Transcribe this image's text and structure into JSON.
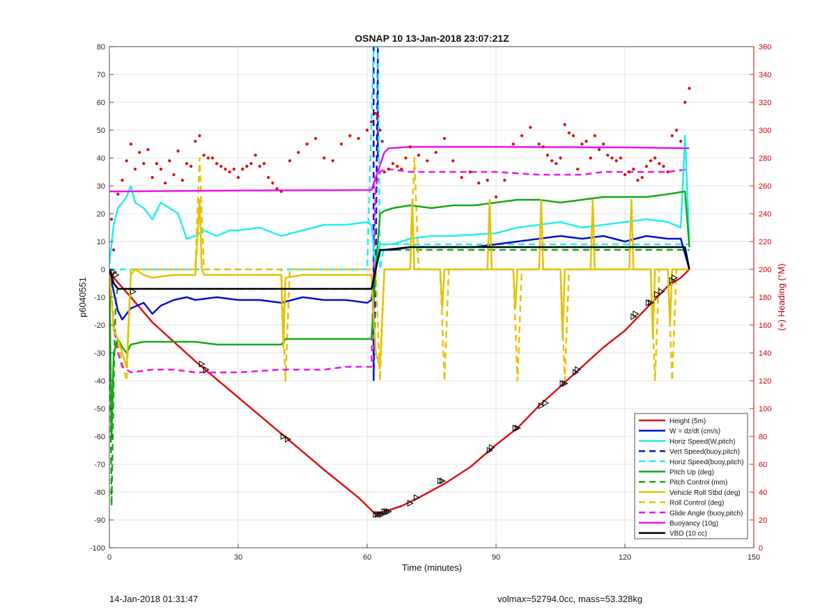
{
  "chart_data": {
    "type": "line",
    "title": "OSNAP 10 13-Jan-2018 23:07:21Z",
    "xlabel": "Time (minutes)",
    "ylabel_left": "p6040551",
    "ylabel_right": "(+) Heading (°M)",
    "xlim": [
      0,
      150
    ],
    "ylim_left": [
      -100,
      80
    ],
    "ylim_right": [
      0,
      360
    ],
    "xticks": [
      0,
      30,
      60,
      90,
      120,
      150
    ],
    "yticks_left": [
      -100,
      -90,
      -80,
      -70,
      -60,
      -50,
      -40,
      -30,
      -20,
      -10,
      0,
      10,
      20,
      30,
      40,
      50,
      60,
      70,
      80
    ],
    "yticks_right": [
      0,
      20,
      40,
      60,
      80,
      100,
      120,
      140,
      160,
      180,
      200,
      220,
      240,
      260,
      280,
      300,
      320,
      340,
      360
    ],
    "grid": true,
    "legend_position": "bottom-right",
    "colors": {
      "red": "#dd1111",
      "blue": "#0011cc",
      "cyan": "#22eeee",
      "green": "#11aa11",
      "yellow": "#e6c200",
      "magenta": "#ee11ee",
      "black": "#000000",
      "right_axis": "#cc0000"
    },
    "series": [
      {
        "name": "Height (5m)",
        "color": "#dd1111",
        "style": "solid",
        "x": [
          0,
          1,
          5,
          10,
          20,
          30,
          40,
          50,
          58,
          62,
          64,
          68,
          72,
          78,
          84,
          90,
          95,
          100,
          105,
          110,
          115,
          120,
          125,
          130,
          133,
          135
        ],
        "y": [
          0,
          -3,
          -10,
          -19,
          -33,
          -46,
          -59,
          -72,
          -82,
          -88,
          -87,
          -85,
          -82,
          -77,
          -71,
          -63,
          -57,
          -49,
          -42,
          -35,
          -28,
          -22,
          -14,
          -6,
          -3,
          0
        ]
      },
      {
        "name": "W = dz/dt (cm/s)",
        "color": "#0011cc",
        "style": "solid",
        "x": [
          0,
          1,
          2,
          3,
          5,
          8,
          10,
          12,
          15,
          18,
          20,
          25,
          30,
          35,
          40,
          45,
          50,
          55,
          60,
          61,
          62,
          63,
          64,
          66,
          70,
          75,
          80,
          85,
          90,
          95,
          100,
          105,
          110,
          115,
          120,
          125,
          130,
          133,
          135
        ],
        "y": [
          -1,
          -8,
          -15,
          -18,
          -14,
          -12,
          -16,
          -13,
          -11,
          -10,
          -11,
          -10,
          -11,
          -11,
          -12,
          -10,
          -11,
          -11,
          -12,
          -11,
          0,
          7,
          7,
          7,
          8,
          8,
          8,
          8,
          9,
          10,
          11,
          12,
          11,
          12,
          10,
          12,
          11,
          11,
          0
        ]
      },
      {
        "name": "Horiz Speed(W,pitch)",
        "color": "#22eeee",
        "style": "solid",
        "x": [
          0,
          1,
          2,
          3,
          4,
          5,
          6,
          8,
          10,
          12,
          14,
          16,
          18,
          20,
          22,
          25,
          28,
          30,
          35,
          40,
          45,
          50,
          55,
          60,
          61,
          62,
          63,
          64,
          66,
          70,
          75,
          80,
          90,
          95,
          100,
          105,
          110,
          115,
          120,
          125,
          130,
          133,
          134,
          135
        ],
        "y": [
          2,
          16,
          22,
          24,
          26,
          30,
          24,
          22,
          18,
          24,
          22,
          20,
          11,
          12,
          14,
          12,
          14,
          14,
          15,
          12,
          14,
          16,
          16,
          17,
          16,
          0,
          9,
          9,
          9,
          11,
          12,
          12,
          13,
          15,
          16,
          17,
          15,
          16,
          17,
          18,
          17,
          15,
          48,
          10
        ]
      },
      {
        "name": "Vert Speed(buoy,pitch)",
        "color": "#0011cc",
        "style": "dashed",
        "x": [
          61.5,
          61.5,
          62,
          62.5,
          62.5
        ],
        "y": [
          80,
          -40,
          0,
          80,
          40
        ]
      },
      {
        "name": "Horiz Speed(buoy,pitch)",
        "color": "#22eeee",
        "style": "dashed",
        "x": [
          0,
          60,
          61.5,
          62.5,
          63,
          64,
          130,
          135
        ],
        "y": [
          0,
          0,
          80,
          80,
          0,
          9,
          9,
          9
        ]
      },
      {
        "name": "Pitch Up (deg)",
        "color": "#11aa11",
        "style": "solid",
        "x": [
          0,
          0.5,
          1,
          2,
          3,
          4,
          5,
          8,
          10,
          15,
          20,
          25,
          30,
          35,
          40,
          41,
          45,
          50,
          55,
          61,
          62,
          63,
          64,
          66,
          70,
          75,
          80,
          85,
          90,
          95,
          100,
          105,
          110,
          115,
          120,
          125,
          130,
          134,
          135
        ],
        "y": [
          0,
          -60,
          -30,
          -25,
          -28,
          -30,
          -27,
          -26,
          -26,
          -26,
          -26,
          -27,
          -27,
          -27,
          -27,
          -25,
          -25,
          -25,
          -25,
          -25,
          0,
          20,
          21,
          22,
          23,
          22,
          23,
          23,
          24,
          25,
          25,
          24,
          25,
          26,
          26,
          26,
          27,
          28,
          8
        ]
      },
      {
        "name": "Pitch Control (mm)",
        "color": "#11aa11",
        "style": "dashed",
        "x": [
          0,
          0.5,
          1,
          1.5,
          2,
          3,
          5,
          10,
          30,
          60,
          61,
          62,
          63,
          64,
          70,
          90,
          120,
          135
        ],
        "y": [
          0,
          -85,
          -40,
          -10,
          -7,
          -7,
          -7,
          -7,
          -7,
          -7,
          -7,
          0,
          7,
          7,
          7,
          7,
          7,
          7
        ]
      },
      {
        "name": "Vehicle Roll Stbd (deg)",
        "color": "#e6c200",
        "style": "solid",
        "x": [
          0,
          1,
          2,
          3,
          4,
          5,
          6,
          8,
          10,
          15,
          20,
          21,
          21.5,
          22,
          25,
          30,
          35,
          40,
          40.5,
          41,
          45,
          55,
          61,
          62,
          63,
          64,
          65,
          66,
          70,
          70.5,
          71,
          77,
          77.5,
          78,
          88,
          88.5,
          89,
          94,
          94.5,
          95,
          100,
          100.5,
          101,
          105,
          105.5,
          106,
          112,
          112.5,
          113,
          121,
          121.5,
          122,
          126,
          126.5,
          127,
          130,
          130.5,
          131,
          133,
          135
        ],
        "y": [
          0,
          -22,
          -25,
          -30,
          -35,
          -2,
          0,
          -2,
          -3,
          -2,
          -2,
          25,
          0,
          -2,
          -2,
          -2,
          -2,
          -2,
          -28,
          -3,
          -2,
          -2,
          -2,
          -30,
          -35,
          0,
          0,
          0,
          0,
          25,
          0,
          0,
          -14,
          0,
          0,
          25,
          0,
          0,
          -14,
          0,
          0,
          25,
          0,
          0,
          -25,
          0,
          0,
          25,
          0,
          0,
          25,
          0,
          0,
          -25,
          0,
          0,
          -20,
          0,
          0,
          0
        ]
      },
      {
        "name": "Roll Control (deg)",
        "color": "#e6c200",
        "style": "dashed",
        "x": [
          0,
          1,
          4,
          5,
          6,
          20,
          21,
          22,
          40,
          41,
          42,
          62,
          63,
          64,
          65,
          70,
          71,
          72,
          77,
          78,
          79,
          94,
          95,
          96,
          105,
          106,
          107,
          126,
          127,
          128,
          130,
          131,
          132,
          135
        ],
        "y": [
          0,
          -20,
          -40,
          0,
          0,
          0,
          40,
          0,
          0,
          -40,
          0,
          0,
          -40,
          0,
          0,
          0,
          40,
          0,
          0,
          -40,
          0,
          0,
          -40,
          0,
          0,
          -40,
          0,
          0,
          -40,
          0,
          0,
          -40,
          0,
          0
        ]
      },
      {
        "name": "Glide Angle (buoy,pitch)",
        "color": "#ee11ee",
        "style": "dashed",
        "x": [
          0,
          1,
          2,
          3,
          5,
          10,
          15,
          20,
          30,
          40,
          50,
          55,
          61,
          62,
          63,
          64,
          65,
          70,
          80,
          90,
          100,
          110,
          115,
          120,
          125,
          130,
          135
        ],
        "y": [
          0,
          -20,
          -30,
          -35,
          -37,
          -36,
          -36,
          -37,
          -37,
          -36,
          -36,
          -35,
          -35,
          30,
          35,
          36,
          36,
          35,
          35,
          35,
          34,
          34,
          35,
          35,
          35,
          35,
          36
        ]
      },
      {
        "name": "Buoyancy (10g)",
        "color": "#ee11ee",
        "style": "solid",
        "x": [
          0,
          3,
          30,
          61,
          62,
          64,
          65,
          70,
          75,
          90,
          120,
          135
        ],
        "y": [
          28,
          28,
          28.3,
          28.5,
          33,
          42,
          43.5,
          44,
          44,
          44,
          43.8,
          43.5
        ]
      },
      {
        "name": "VBD (10 cc)",
        "color": "#000000",
        "style": "solid",
        "x": [
          0,
          1,
          2,
          5,
          10,
          30,
          61,
          62,
          63,
          64,
          70,
          90,
          120,
          134,
          135
        ],
        "y": [
          0,
          -5,
          -7,
          -7,
          -7,
          -7,
          -7,
          0,
          7,
          7,
          8,
          8,
          8,
          8,
          0
        ]
      }
    ],
    "heading_points": {
      "name": "Heading",
      "color": "#dd1111",
      "axis": "right",
      "x": [
        0.5,
        1,
        2,
        3,
        4,
        5,
        6,
        7,
        8,
        9,
        10,
        11,
        12,
        13,
        14,
        15,
        16,
        17,
        18,
        19,
        20,
        21,
        22,
        23,
        24,
        25,
        26,
        27,
        28,
        29,
        30,
        31,
        32,
        33,
        34,
        35,
        36,
        37,
        38,
        39,
        40,
        42,
        44,
        46,
        48,
        50,
        52,
        54,
        56,
        58,
        60,
        61,
        62,
        62.5,
        63,
        63.5,
        64,
        65,
        66,
        67,
        68,
        69,
        70,
        72,
        74,
        76,
        78,
        80,
        82,
        84,
        86,
        88,
        90,
        92,
        94,
        96,
        98,
        100,
        101,
        102,
        103,
        104,
        105,
        106,
        107,
        108,
        109,
        110,
        111,
        112,
        113,
        114,
        115,
        116,
        117,
        118,
        119,
        120,
        121,
        122,
        123,
        124,
        125,
        126,
        127,
        128,
        129,
        130,
        131,
        132,
        133,
        134,
        135
      ],
      "y": [
        236,
        214,
        254,
        264,
        278,
        290,
        272,
        284,
        276,
        286,
        266,
        276,
        272,
        262,
        278,
        268,
        285,
        264,
        276,
        274,
        292,
        296,
        282,
        280,
        280,
        276,
        274,
        272,
        270,
        272,
        266,
        272,
        274,
        276,
        282,
        274,
        276,
        266,
        262,
        258,
        256,
        278,
        284,
        290,
        294,
        280,
        278,
        290,
        296,
        294,
        300,
        306,
        312,
        310,
        300,
        292,
        270,
        272,
        276,
        274,
        272,
        280,
        288,
        282,
        278,
        284,
        294,
        278,
        266,
        270,
        262,
        264,
        252,
        264,
        290,
        296,
        302,
        290,
        288,
        282,
        278,
        276,
        280,
        304,
        298,
        296,
        272,
        290,
        292,
        280,
        296,
        286,
        290,
        282,
        280,
        278,
        280,
        268,
        270,
        272,
        264,
        266,
        274,
        278,
        280,
        276,
        274,
        270,
        296,
        300,
        292,
        320,
        330
      ]
    },
    "vbd_triangle_markers": {
      "x": [
        1,
        1.5,
        5.5,
        21.5,
        22.5,
        40.5,
        41.5,
        62,
        62.5,
        63,
        63.5,
        64,
        64.5,
        65,
        70,
        71.5,
        77,
        77.5,
        88.5,
        89,
        94.5,
        95,
        100.5,
        101.5,
        105.5,
        106,
        108.5,
        109,
        122,
        122.5,
        125.5,
        126,
        127.5,
        128.5,
        131,
        131.5
      ],
      "y": [
        -1,
        -2,
        -8,
        -34,
        -36,
        -60,
        -61,
        -88,
        -88,
        -88,
        -88,
        -87,
        -87,
        -87,
        -84,
        -82,
        -76,
        -76,
        -65,
        -64,
        -57,
        -57,
        -49,
        -48,
        -41,
        -41,
        -37,
        -36,
        -17,
        -16,
        -12,
        -12,
        -9,
        -8,
        -4,
        -3
      ]
    }
  },
  "footer": {
    "left": "14-Jan-2018 01:31:47",
    "right": "volmax=52794.0cc, mass=53.328kg"
  }
}
